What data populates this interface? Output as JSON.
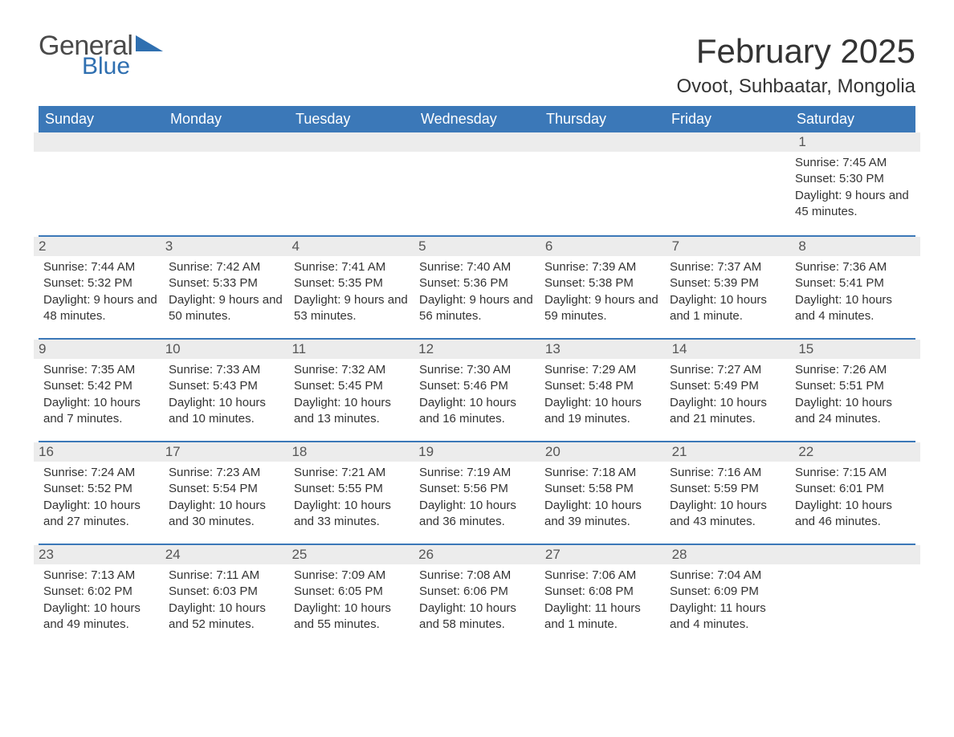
{
  "brand": {
    "logo_text_1": "General",
    "logo_text_2": "Blue",
    "logo_color_gray": "#4a4a4a",
    "logo_color_blue": "#2f6fb0"
  },
  "title": {
    "month": "February 2025",
    "location": "Ovoot, Suhbaatar, Mongolia"
  },
  "colors": {
    "header_bg": "#3b78b8",
    "header_text": "#ffffff",
    "daynum_bg": "#ececec",
    "row_border": "#3b78b8",
    "body_bg": "#ffffff",
    "text": "#333333"
  },
  "typography": {
    "month_title_fontsize": 42,
    "location_fontsize": 24,
    "weekday_fontsize": 18,
    "daynum_fontsize": 17,
    "detail_fontsize": 15
  },
  "weekdays": [
    "Sunday",
    "Monday",
    "Tuesday",
    "Wednesday",
    "Thursday",
    "Friday",
    "Saturday"
  ],
  "weeks": [
    [
      null,
      null,
      null,
      null,
      null,
      null,
      {
        "n": "1",
        "sunrise": "7:45 AM",
        "sunset": "5:30 PM",
        "daylight": "9 hours and 45 minutes."
      }
    ],
    [
      {
        "n": "2",
        "sunrise": "7:44 AM",
        "sunset": "5:32 PM",
        "daylight": "9 hours and 48 minutes."
      },
      {
        "n": "3",
        "sunrise": "7:42 AM",
        "sunset": "5:33 PM",
        "daylight": "9 hours and 50 minutes."
      },
      {
        "n": "4",
        "sunrise": "7:41 AM",
        "sunset": "5:35 PM",
        "daylight": "9 hours and 53 minutes."
      },
      {
        "n": "5",
        "sunrise": "7:40 AM",
        "sunset": "5:36 PM",
        "daylight": "9 hours and 56 minutes."
      },
      {
        "n": "6",
        "sunrise": "7:39 AM",
        "sunset": "5:38 PM",
        "daylight": "9 hours and 59 minutes."
      },
      {
        "n": "7",
        "sunrise": "7:37 AM",
        "sunset": "5:39 PM",
        "daylight": "10 hours and 1 minute."
      },
      {
        "n": "8",
        "sunrise": "7:36 AM",
        "sunset": "5:41 PM",
        "daylight": "10 hours and 4 minutes."
      }
    ],
    [
      {
        "n": "9",
        "sunrise": "7:35 AM",
        "sunset": "5:42 PM",
        "daylight": "10 hours and 7 minutes."
      },
      {
        "n": "10",
        "sunrise": "7:33 AM",
        "sunset": "5:43 PM",
        "daylight": "10 hours and 10 minutes."
      },
      {
        "n": "11",
        "sunrise": "7:32 AM",
        "sunset": "5:45 PM",
        "daylight": "10 hours and 13 minutes."
      },
      {
        "n": "12",
        "sunrise": "7:30 AM",
        "sunset": "5:46 PM",
        "daylight": "10 hours and 16 minutes."
      },
      {
        "n": "13",
        "sunrise": "7:29 AM",
        "sunset": "5:48 PM",
        "daylight": "10 hours and 19 minutes."
      },
      {
        "n": "14",
        "sunrise": "7:27 AM",
        "sunset": "5:49 PM",
        "daylight": "10 hours and 21 minutes."
      },
      {
        "n": "15",
        "sunrise": "7:26 AM",
        "sunset": "5:51 PM",
        "daylight": "10 hours and 24 minutes."
      }
    ],
    [
      {
        "n": "16",
        "sunrise": "7:24 AM",
        "sunset": "5:52 PM",
        "daylight": "10 hours and 27 minutes."
      },
      {
        "n": "17",
        "sunrise": "7:23 AM",
        "sunset": "5:54 PM",
        "daylight": "10 hours and 30 minutes."
      },
      {
        "n": "18",
        "sunrise": "7:21 AM",
        "sunset": "5:55 PM",
        "daylight": "10 hours and 33 minutes."
      },
      {
        "n": "19",
        "sunrise": "7:19 AM",
        "sunset": "5:56 PM",
        "daylight": "10 hours and 36 minutes."
      },
      {
        "n": "20",
        "sunrise": "7:18 AM",
        "sunset": "5:58 PM",
        "daylight": "10 hours and 39 minutes."
      },
      {
        "n": "21",
        "sunrise": "7:16 AM",
        "sunset": "5:59 PM",
        "daylight": "10 hours and 43 minutes."
      },
      {
        "n": "22",
        "sunrise": "7:15 AM",
        "sunset": "6:01 PM",
        "daylight": "10 hours and 46 minutes."
      }
    ],
    [
      {
        "n": "23",
        "sunrise": "7:13 AM",
        "sunset": "6:02 PM",
        "daylight": "10 hours and 49 minutes."
      },
      {
        "n": "24",
        "sunrise": "7:11 AM",
        "sunset": "6:03 PM",
        "daylight": "10 hours and 52 minutes."
      },
      {
        "n": "25",
        "sunrise": "7:09 AM",
        "sunset": "6:05 PM",
        "daylight": "10 hours and 55 minutes."
      },
      {
        "n": "26",
        "sunrise": "7:08 AM",
        "sunset": "6:06 PM",
        "daylight": "10 hours and 58 minutes."
      },
      {
        "n": "27",
        "sunrise": "7:06 AM",
        "sunset": "6:08 PM",
        "daylight": "11 hours and 1 minute."
      },
      {
        "n": "28",
        "sunrise": "7:04 AM",
        "sunset": "6:09 PM",
        "daylight": "11 hours and 4 minutes."
      },
      null
    ]
  ],
  "labels": {
    "sunrise": "Sunrise:",
    "sunset": "Sunset:",
    "daylight": "Daylight:"
  }
}
